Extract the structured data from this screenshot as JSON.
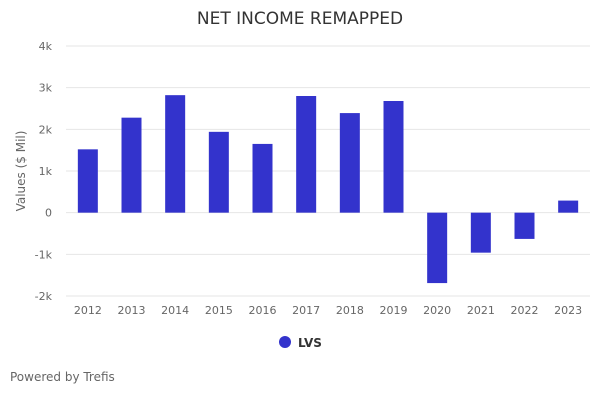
{
  "chart_data": {
    "type": "bar",
    "title": "NET INCOME REMAPPED",
    "xlabel": "",
    "ylabel": "Values ($ Mil)",
    "categories": [
      "2012",
      "2013",
      "2014",
      "2015",
      "2016",
      "2017",
      "2018",
      "2019",
      "2020",
      "2021",
      "2022",
      "2023"
    ],
    "series": [
      {
        "name": "LVS",
        "values": [
          1520,
          2280,
          2820,
          1940,
          1650,
          2800,
          2390,
          2680,
          -1690,
          -960,
          -630,
          290
        ],
        "color": "#3333cc"
      }
    ],
    "ylim": [
      -2000,
      4000
    ],
    "yticks": [
      {
        "value": 4000,
        "label": "4k"
      },
      {
        "value": 3000,
        "label": "3k"
      },
      {
        "value": 2000,
        "label": "2k"
      },
      {
        "value": 1000,
        "label": "1k"
      },
      {
        "value": 0,
        "label": "0"
      },
      {
        "value": -1000,
        "label": "-1k"
      },
      {
        "value": -2000,
        "label": "-2k"
      }
    ],
    "grid": true,
    "legend": "bottom-center"
  },
  "credit": "Powered by Trefis",
  "colors": {
    "bar": "#3333cc",
    "grid": "#e6e6e6",
    "text": "#333333",
    "muted": "#666666"
  }
}
